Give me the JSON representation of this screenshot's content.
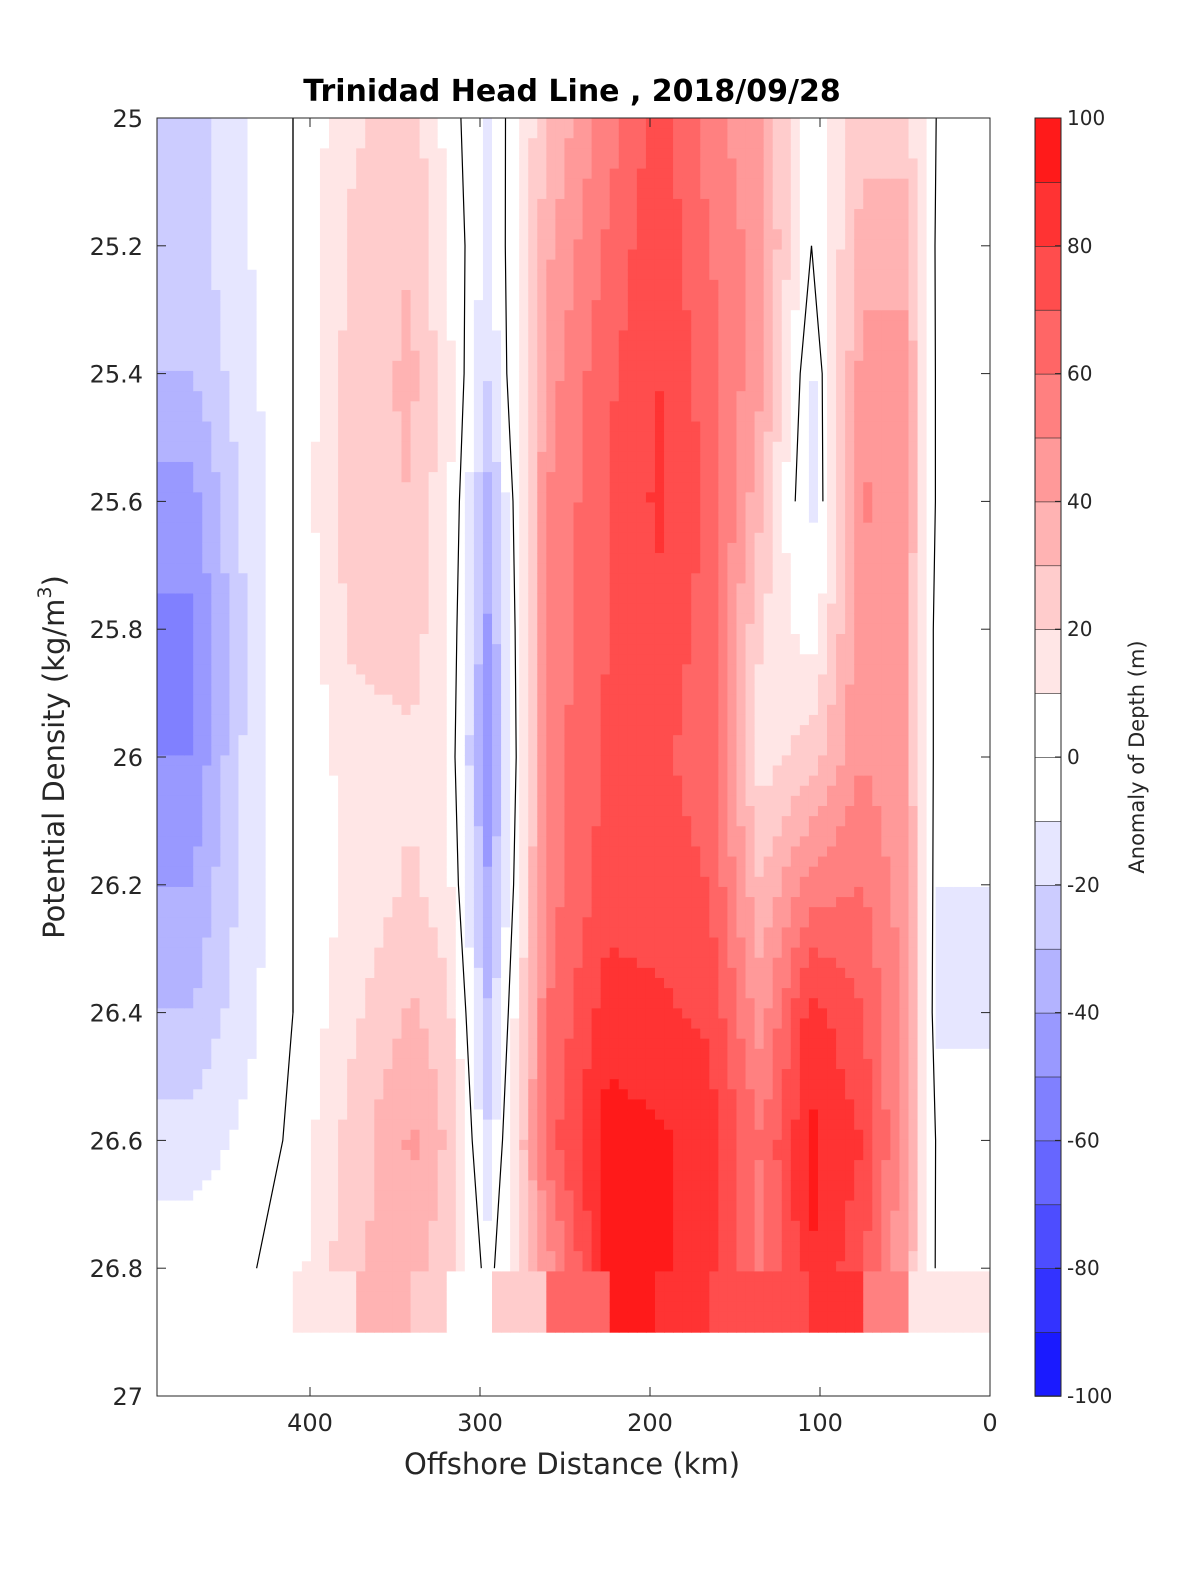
{
  "chart_data": {
    "type": "heatmap",
    "title": "Trinidad Head Line , 2018/09/28",
    "xlabel": "Offshore Distance (km)",
    "ylabel_main": "Potential Density (kg/m",
    "ylabel_sup": "3",
    "ylabel_tail": ")",
    "xlim": [
      490,
      0
    ],
    "ylim": [
      25,
      27
    ],
    "x_reversed": true,
    "y_reversed": true,
    "x_ticks": [
      400,
      300,
      200,
      100,
      0
    ],
    "x_tick_labels": [
      "400",
      "300",
      "200",
      "100",
      "0"
    ],
    "y_ticks": [
      25,
      25.2,
      25.4,
      25.6,
      25.8,
      26,
      26.2,
      26.4,
      26.6,
      26.8,
      27
    ],
    "y_tick_labels": [
      "25",
      "25.2",
      "25.4",
      "25.6",
      "25.8",
      "26",
      "26.2",
      "26.4",
      "26.6",
      "26.8",
      "27"
    ],
    "grid": false,
    "colorbar": {
      "label": "Anomaly of Depth (m)",
      "range": [
        -100,
        100
      ],
      "step": 10,
      "ticks": [
        100,
        80,
        60,
        40,
        20,
        0,
        -20,
        -40,
        -60,
        -80,
        -100
      ],
      "tick_labels": [
        "100",
        "80",
        "60",
        "40",
        "20",
        "0",
        "-20",
        "-40",
        "-60",
        "-80",
        "-100"
      ],
      "positive_color": "#ff0000",
      "negative_color": "#0000ff",
      "neutral_color": "#ffffff"
    },
    "zero_contour_color": "#000000",
    "columns": [
      {
        "x": 470,
        "values": [
          -25,
          -25,
          -30,
          -45,
          -52,
          -50,
          -40,
          -30,
          -15,
          -5,
          null
        ]
      },
      {
        "x": 440,
        "values": [
          -12,
          -12,
          -15,
          -18,
          -22,
          -20,
          -18,
          -15,
          -8,
          -2,
          null
        ]
      },
      {
        "x": 410,
        "values": [
          0,
          0,
          0,
          0,
          0,
          0,
          0,
          0,
          2,
          5,
          null
        ]
      },
      {
        "x": 375,
        "values": [
          18,
          22,
          25,
          28,
          22,
          15,
          12,
          18,
          25,
          28,
          null
        ]
      },
      {
        "x": 340,
        "values": [
          25,
          30,
          32,
          30,
          25,
          18,
          22,
          32,
          42,
          35,
          null
        ]
      },
      {
        "x": 318,
        "values": [
          5,
          10,
          12,
          12,
          10,
          8,
          12,
          22,
          28,
          22,
          null
        ]
      },
      {
        "x": 295,
        "values": [
          -12,
          -15,
          -20,
          -35,
          -42,
          -48,
          -40,
          -30,
          -20,
          -5,
          null
        ]
      },
      {
        "x": 260,
        "values": [
          30,
          38,
          45,
          50,
          52,
          55,
          55,
          60,
          65,
          45,
          null
        ]
      },
      {
        "x": 225,
        "values": [
          55,
          62,
          68,
          70,
          70,
          72,
          75,
          85,
          95,
          92,
          null
        ]
      },
      {
        "x": 195,
        "values": [
          75,
          78,
          80,
          82,
          78,
          72,
          75,
          82,
          92,
          92,
          null
        ]
      },
      {
        "x": 165,
        "values": [
          55,
          60,
          65,
          68,
          65,
          65,
          70,
          78,
          85,
          85,
          null
        ]
      },
      {
        "x": 135,
        "values": [
          40,
          45,
          42,
          32,
          20,
          15,
          30,
          45,
          60,
          55,
          null
        ]
      },
      {
        "x": 105,
        "values": [
          5,
          0,
          -12,
          -15,
          5,
          25,
          55,
          85,
          92,
          90,
          null
        ]
      },
      {
        "x": 75,
        "values": [
          25,
          35,
          45,
          52,
          48,
          50,
          60,
          70,
          80,
          72,
          null
        ]
      },
      {
        "x": 50,
        "values": [
          22,
          38,
          42,
          42,
          40,
          40,
          45,
          48,
          45,
          40,
          null
        ]
      },
      {
        "x": 30,
        "values": [
          -2,
          -5,
          -5,
          -5,
          -8,
          -8,
          -10,
          -12,
          -5,
          -5,
          null
        ]
      }
    ],
    "missing_region_note": ""
  }
}
